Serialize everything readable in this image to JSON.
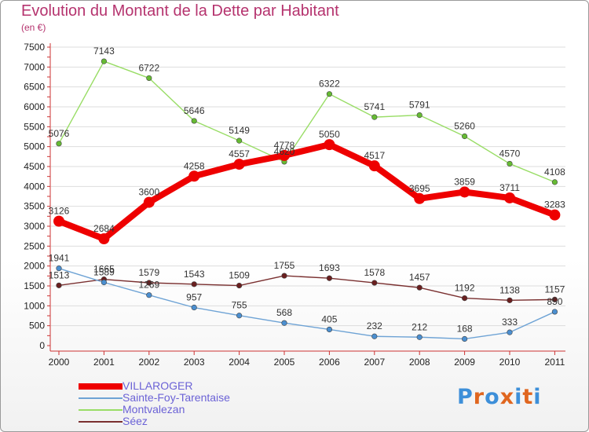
{
  "header": {
    "title": "Evolution du Montant de la Dette par Habitant",
    "subtitle": "(en €)"
  },
  "colors": {
    "title": "#b5336e",
    "legend_text": "#6b62d6",
    "axis": "#cc3333",
    "grid": "#dddddd"
  },
  "logo": {
    "text": "Proxiti",
    "letter_colors": [
      "#3d8fd9",
      "#e0661f",
      "#3d8fd9",
      "#e0661f",
      "#3d8fd9",
      "#e0661f",
      "#3d8fd9"
    ]
  },
  "chart_data": {
    "type": "line",
    "title": "Evolution du Montant de la Dette par Habitant",
    "subtitle": "(en €)",
    "xlabel": "",
    "ylabel": "",
    "categories": [
      "2000",
      "2001",
      "2002",
      "2003",
      "2004",
      "2005",
      "2006",
      "2007",
      "2008",
      "2009",
      "2010",
      "2011"
    ],
    "ylim": [
      0,
      7500
    ],
    "yticks": [
      0,
      500,
      1000,
      1500,
      2000,
      2500,
      3000,
      3500,
      4000,
      4500,
      5000,
      5500,
      6000,
      6500,
      7000,
      7500
    ],
    "grid": "horizontal",
    "legend_position": "bottom-left",
    "series": [
      {
        "name": "VILLAROGER",
        "color": "#ee0000",
        "marker_color": "#ee0000",
        "bold": true,
        "values": [
          3126,
          2684,
          3600,
          4258,
          4557,
          4778,
          5050,
          4517,
          3695,
          3859,
          3711,
          3283
        ]
      },
      {
        "name": "Sainte-Foy-Tarentaise",
        "color": "#6ea3d5",
        "marker_color": "#4b8fd0",
        "bold": false,
        "values": [
          1941,
          1589,
          1269,
          957,
          755,
          568,
          405,
          232,
          212,
          168,
          333,
          850
        ]
      },
      {
        "name": "Montvalezan",
        "color": "#99dd66",
        "marker_color": "#66bb33",
        "bold": false,
        "values": [
          5076,
          7143,
          6722,
          5646,
          5149,
          4620,
          6322,
          5741,
          5791,
          5260,
          4570,
          4108
        ]
      },
      {
        "name": "Séez",
        "color": "#7a3030",
        "marker_color": "#6a1f1f",
        "bold": false,
        "values": [
          1513,
          1665,
          1579,
          1543,
          1509,
          1755,
          1693,
          1578,
          1457,
          1192,
          1138,
          1157
        ]
      }
    ]
  }
}
